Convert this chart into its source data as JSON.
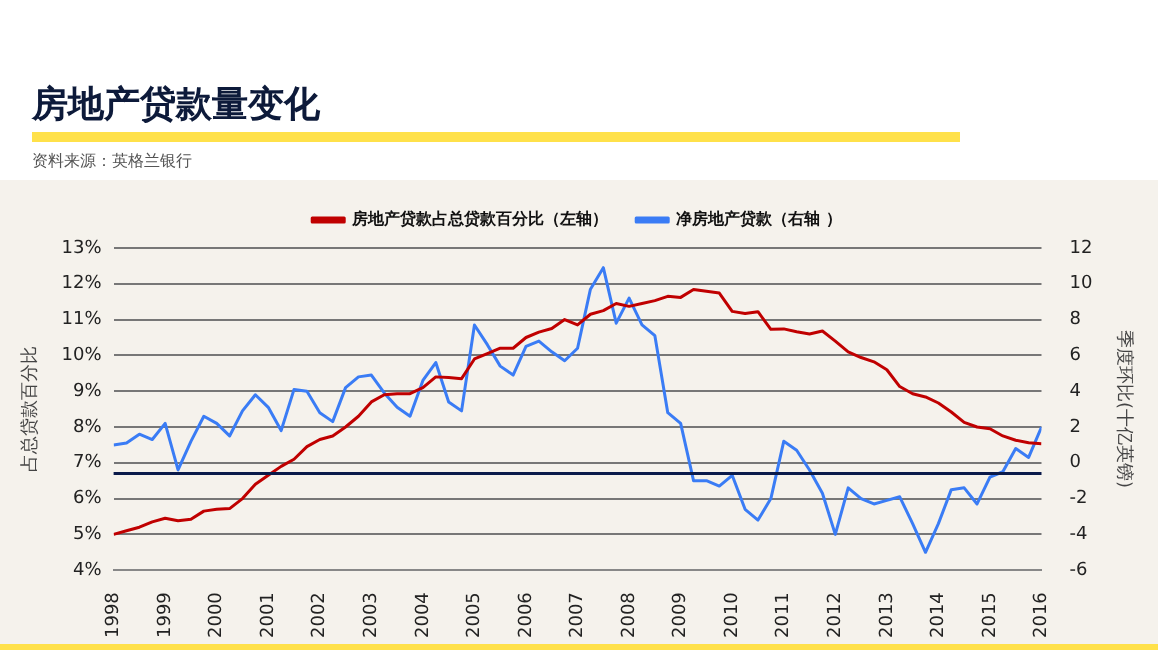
{
  "chart_data": {
    "type": "line",
    "title": "房地产贷款量变化",
    "annotations": [
      "资料来源：英格兰银行"
    ],
    "ylabel": "占总贷款百分比",
    "y2label": "季度环比(十亿英镑)",
    "x": [
      1998,
      1998.25,
      1998.5,
      1998.75,
      1999,
      1999.25,
      1999.5,
      1999.75,
      2000,
      2000.25,
      2000.5,
      2000.75,
      2001,
      2001.25,
      2001.5,
      2001.75,
      2002,
      2002.25,
      2002.5,
      2002.75,
      2003,
      2003.25,
      2003.5,
      2003.75,
      2004,
      2004.25,
      2004.5,
      2004.75,
      2005,
      2005.25,
      2005.5,
      2005.75,
      2006,
      2006.25,
      2006.5,
      2006.75,
      2007,
      2007.25,
      2007.5,
      2007.75,
      2008,
      2008.25,
      2008.5,
      2008.75,
      2009,
      2009.25,
      2009.5,
      2009.75,
      2010,
      2010.25,
      2010.5,
      2010.75,
      2011,
      2011.25,
      2011.5,
      2011.75,
      2012,
      2012.25,
      2012.5,
      2012.75,
      2013,
      2013.25,
      2013.5,
      2013.75,
      2014,
      2014.25,
      2014.5,
      2014.75,
      2015,
      2015.25,
      2015.5,
      2015.75,
      2016
    ],
    "series": [
      {
        "name": "房地产贷款占总贷款百分比（左轴）",
        "color": "#c00000",
        "values": [
          5.0,
          5.1,
          5.2,
          5.35,
          5.45,
          5.38,
          5.42,
          5.65,
          5.7,
          5.72,
          6.0,
          6.4,
          6.65,
          6.9,
          7.1,
          7.45,
          7.65,
          7.75,
          8.0,
          8.3,
          8.7,
          8.9,
          8.93,
          8.93,
          9.1,
          9.4,
          9.38,
          9.35,
          9.9,
          10.05,
          10.2,
          10.2,
          10.5,
          10.65,
          10.75,
          11.0,
          10.85,
          11.15,
          11.25,
          11.45,
          11.37,
          11.45,
          11.53,
          11.65,
          11.62,
          11.84,
          11.79,
          11.74,
          11.23,
          11.17,
          11.22,
          10.73,
          10.74,
          10.66,
          10.6,
          10.68,
          10.4,
          10.1,
          9.94,
          9.82,
          9.6,
          9.13,
          8.93,
          8.84,
          8.67,
          8.42,
          8.13,
          8.0,
          7.95,
          7.75,
          7.63,
          7.56,
          7.53
        ]
      },
      {
        "name": "净房地产贷款（右轴 ）",
        "color": "#3a7cf5",
        "axis": "y2",
        "values": [
          1.0,
          1.1,
          1.6,
          1.3,
          2.2,
          -0.4,
          1.2,
          2.6,
          2.2,
          1.5,
          2.9,
          3.8,
          3.1,
          1.8,
          4.1,
          4.0,
          2.8,
          2.3,
          4.2,
          4.8,
          4.9,
          3.9,
          3.1,
          2.6,
          4.6,
          5.6,
          3.4,
          2.9,
          7.7,
          6.6,
          5.4,
          4.9,
          6.5,
          6.8,
          6.2,
          5.7,
          6.4,
          9.7,
          10.9,
          7.8,
          9.2,
          7.7,
          7.1,
          2.8,
          2.2,
          -1.0,
          -1.0,
          -1.3,
          -0.7,
          -2.6,
          -3.2,
          -2.0,
          1.2,
          0.7,
          -0.4,
          -1.7,
          -4.0,
          -1.4,
          -2.0,
          -2.3,
          -2.1,
          -1.9,
          -3.4,
          -5.0,
          -3.4,
          -1.5,
          -1.4,
          -2.3,
          -0.8,
          -0.5,
          0.8,
          0.3,
          2.0
        ]
      }
    ],
    "xlim": [
      1998,
      2016
    ],
    "xticks": [
      1998,
      1999,
      2000,
      2001,
      2002,
      2003,
      2004,
      2005,
      2006,
      2007,
      2008,
      2009,
      2010,
      2011,
      2012,
      2013,
      2014,
      2015,
      2016
    ],
    "ylim": [
      4,
      13
    ],
    "yticks": [
      {
        "value": 4,
        "label": "4%"
      },
      {
        "value": 5,
        "label": "5%"
      },
      {
        "value": 6,
        "label": "6%"
      },
      {
        "value": 7,
        "label": "7%"
      },
      {
        "value": 8,
        "label": "8%"
      },
      {
        "value": 9,
        "label": "9%"
      },
      {
        "value": 10,
        "label": "10%"
      },
      {
        "value": 11,
        "label": "11%"
      },
      {
        "value": 12,
        "label": "12%"
      },
      {
        "value": 13,
        "label": "13%"
      }
    ],
    "y2lim": [
      -6,
      12
    ],
    "y2ticks": [
      -6,
      -4,
      -2,
      0,
      2,
      4,
      6,
      8,
      10,
      12
    ],
    "ref_lines": [
      {
        "axis": "y",
        "value": 6.7,
        "color": "#0a1a4a"
      }
    ],
    "grid": "y",
    "legend": "top",
    "marker": "none",
    "line_style": "solid"
  }
}
